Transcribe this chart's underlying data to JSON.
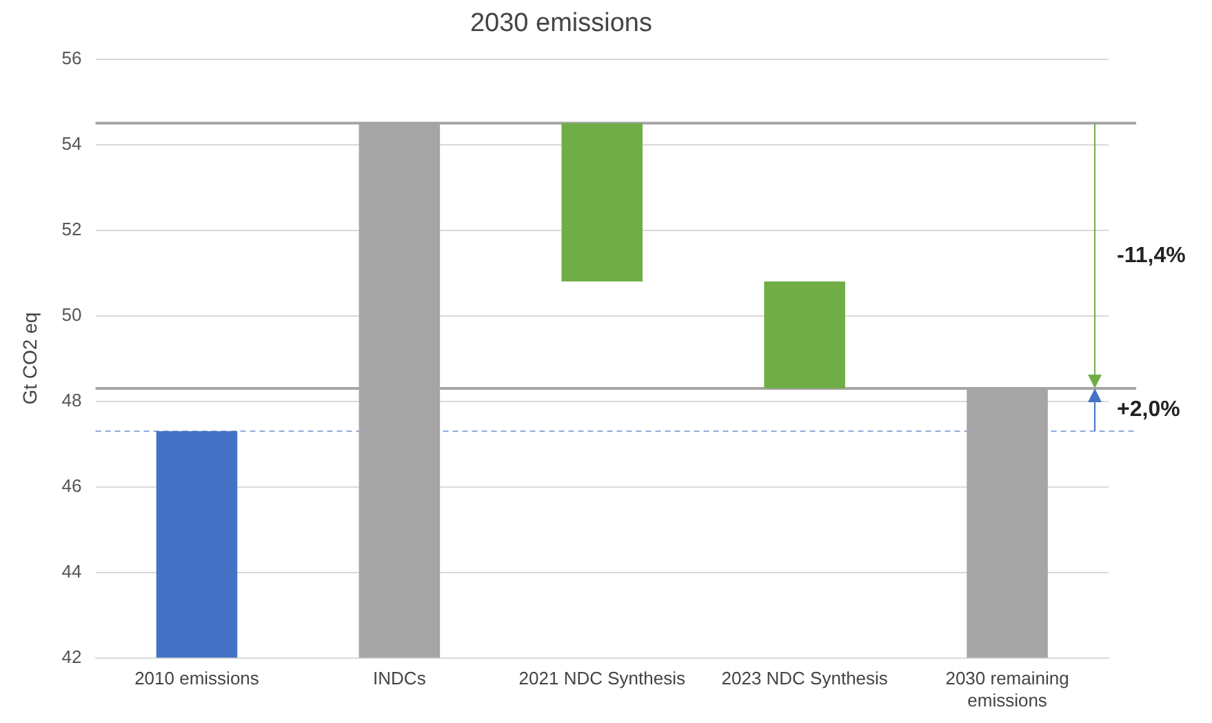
{
  "chart_data": {
    "type": "bar",
    "title": "2030 emissions",
    "ylabel": "Gt CO2 eq",
    "categories": [
      "2010 emissions",
      "INDCs",
      "2021 NDC Synthesis",
      "2023 NDC Synthesis",
      "2030 remaining emissions"
    ],
    "base": [
      42,
      42,
      50.8,
      48.3,
      42
    ],
    "values": [
      5.3,
      12.5,
      3.7,
      2.5,
      6.3
    ],
    "colors": [
      "#4472c4",
      "#a5a5a5",
      "#70ad47",
      "#70ad47",
      "#a5a5a5"
    ],
    "ylim": [
      42,
      56
    ],
    "yticks": [
      42,
      44,
      46,
      48,
      50,
      52,
      54,
      56
    ],
    "grid": "y",
    "legend": false,
    "ref_lines": [
      {
        "axis": "y",
        "value": 54.5,
        "color": "#a5a5a5",
        "line_style": "solid"
      },
      {
        "axis": "y",
        "value": 48.3,
        "color": "#a5a5a5",
        "line_style": "solid"
      },
      {
        "axis": "y",
        "value": 47.3,
        "color": "#8faadc",
        "line_style": "dashed"
      }
    ],
    "annotations": [
      "-11,4%",
      "+2,0%"
    ]
  }
}
